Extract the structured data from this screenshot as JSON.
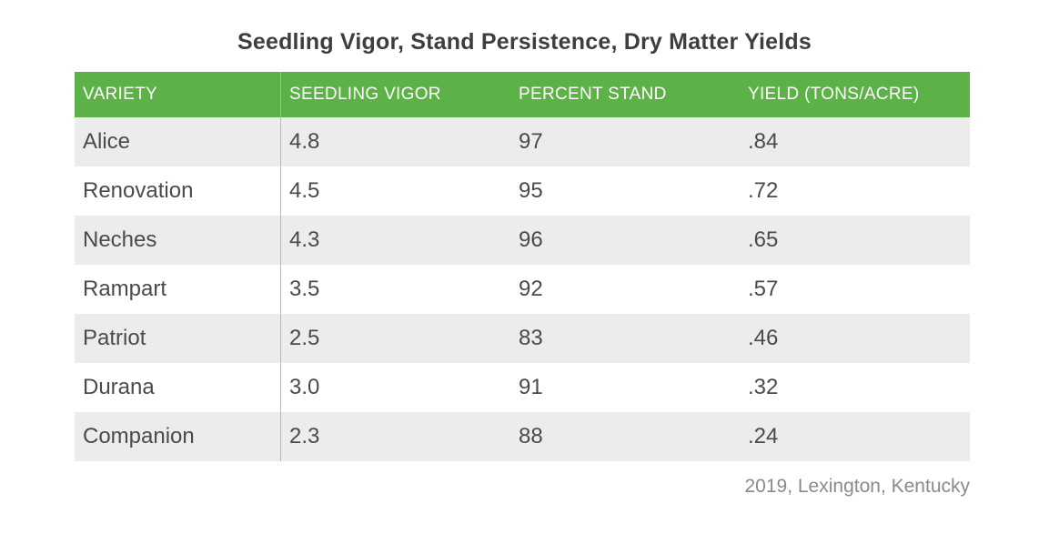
{
  "title": "Seedling Vigor, Stand Persistence, Dry Matter Yields",
  "columns": [
    "VARIETY",
    "SEEDLING VIGOR",
    "PERCENT STAND",
    "YIELD (TONS/ACRE)"
  ],
  "rows": [
    [
      "Alice",
      "4.8",
      "97",
      ".84"
    ],
    [
      "Renovation",
      "4.5",
      "95",
      ".72"
    ],
    [
      "Neches",
      "4.3",
      "96",
      ".65"
    ],
    [
      "Rampart",
      "3.5",
      "92",
      ".57"
    ],
    [
      "Patriot",
      "2.5",
      "83",
      ".46"
    ],
    [
      "Durana",
      "3.0",
      "91",
      ".32"
    ],
    [
      "Companion",
      "2.3",
      "88",
      ".24"
    ]
  ],
  "source": "2019, Lexington, Kentucky",
  "colors": {
    "header_bg": "#5cb247",
    "row_shade": "#ececec",
    "text": "#4a4a4a"
  }
}
